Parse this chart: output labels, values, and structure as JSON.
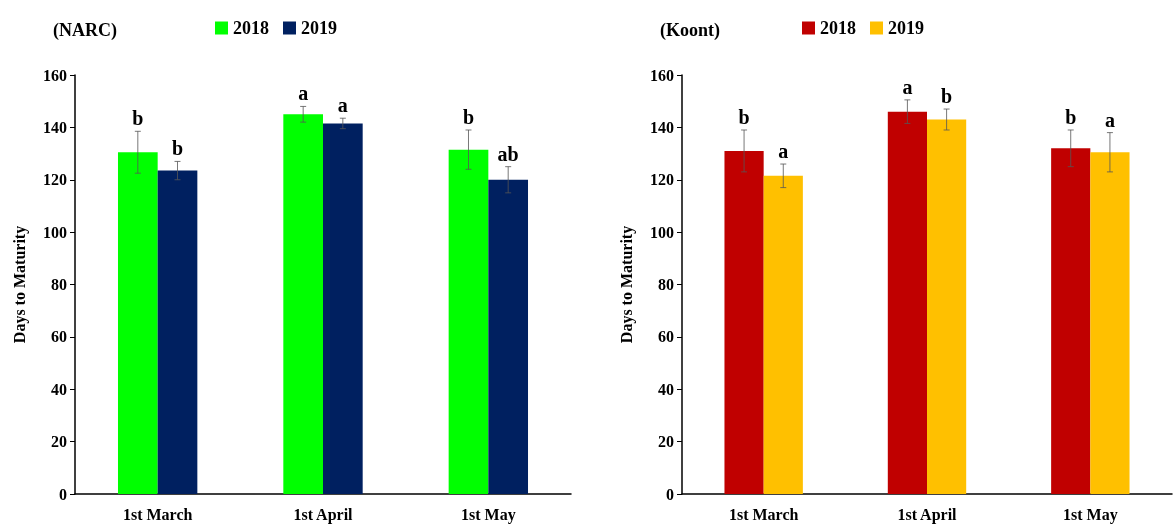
{
  "chart_data": [
    {
      "type": "bar",
      "title": "(NARC)",
      "ylabel": "Days to Maturity",
      "categories": [
        "1st March",
        "1st April",
        "1st May"
      ],
      "series": [
        {
          "name": "2018",
          "color": "#00ff00",
          "values": [
            130.5,
            145,
            131.5
          ],
          "errors": [
            8,
            3,
            7.5
          ],
          "value_labels": [
            "b",
            "a",
            "b"
          ]
        },
        {
          "name": "2019",
          "color": "#002060",
          "values": [
            123.5,
            141.5,
            120
          ],
          "errors": [
            3.5,
            2,
            5
          ],
          "value_labels": [
            "b",
            "a",
            "ab"
          ]
        }
      ],
      "ylim": [
        0,
        160
      ],
      "yticks": [
        0,
        20,
        40,
        60,
        80,
        100,
        120,
        140,
        160
      ],
      "grid": false,
      "legend": "top"
    },
    {
      "type": "bar",
      "title": "(Koont)",
      "ylabel": "Days to Maturity",
      "categories": [
        "1st March",
        "1st April",
        "1st May"
      ],
      "series": [
        {
          "name": "2018",
          "color": "#c00000",
          "values": [
            131,
            146,
            132
          ],
          "errors": [
            8,
            4.5,
            7
          ],
          "value_labels": [
            "b",
            "a",
            "b"
          ]
        },
        {
          "name": "2019",
          "color": "#ffc000",
          "values": [
            121.5,
            143,
            130.5
          ],
          "errors": [
            4.5,
            4,
            7.5
          ],
          "value_labels": [
            "a",
            "b",
            "a"
          ]
        }
      ],
      "ylim": [
        0,
        160
      ],
      "yticks": [
        0,
        20,
        40,
        60,
        80,
        100,
        120,
        140,
        160
      ],
      "grid": false,
      "legend": "top"
    }
  ]
}
